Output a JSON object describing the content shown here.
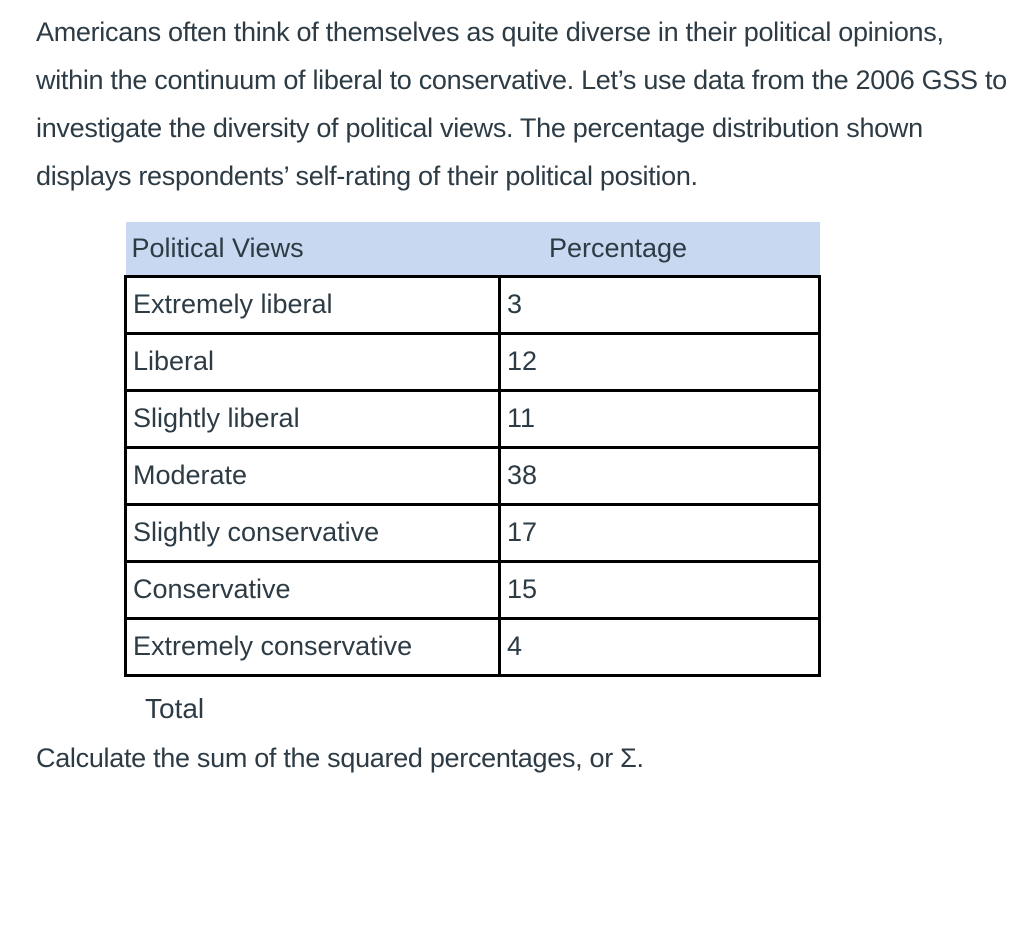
{
  "colors": {
    "text": "#2d3b45",
    "table_header_background": "#c8d8f0",
    "table_border": "#000000",
    "page_background": "#ffffff"
  },
  "intro": {
    "text": "Americans often think of themselves as quite diverse in their political opinions, within the continuum of liberal to conservative. Let’s use data from the 2006 GSS to investigate the diversity of political views. The percentage distribution shown displays respondents’ self-rating of their political position."
  },
  "table": {
    "headers": [
      "Political Views",
      "Percentage"
    ],
    "rows": [
      {
        "view": "Extremely liberal",
        "percentage": "3"
      },
      {
        "view": "Liberal",
        "percentage": "12"
      },
      {
        "view": "Slightly liberal",
        "percentage": "11"
      },
      {
        "view": "Moderate",
        "percentage": "38"
      },
      {
        "view": "Slightly conservative",
        "percentage": "17"
      },
      {
        "view": "Conservative",
        "percentage": "15"
      },
      {
        "view": "Extremely conservative",
        "percentage": "4"
      }
    ],
    "footer_label": "Total"
  },
  "question": {
    "text": "Calculate the sum of the squared percentages, or Σ."
  }
}
